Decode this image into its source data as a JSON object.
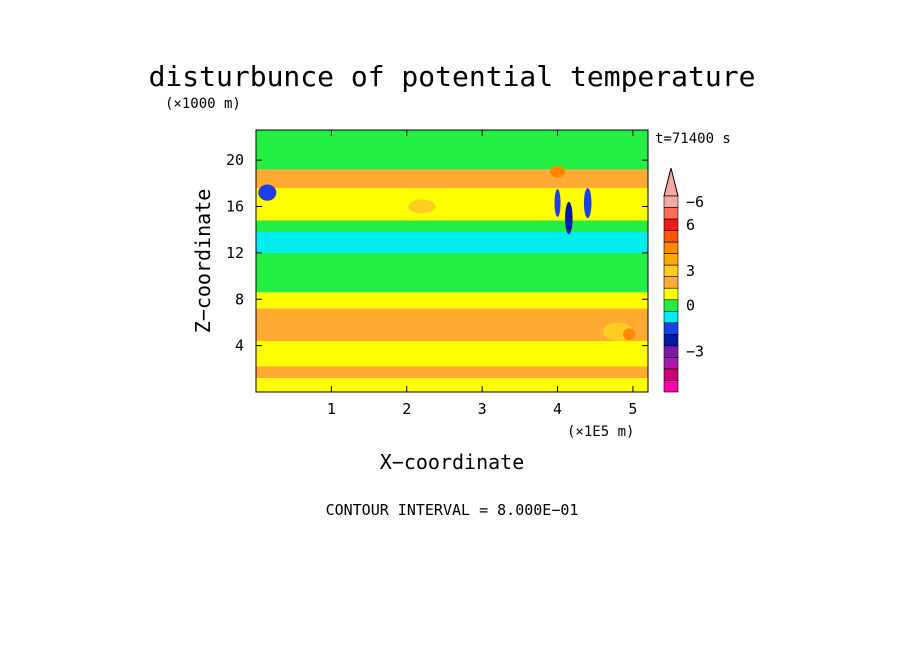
{
  "chart_data": {
    "type": "heatmap",
    "title": "disturbunce of potential temperature",
    "time_label": "t=71400 s",
    "x_axis": {
      "label": "X−coordinate",
      "unit_label": "(×1E5 m)",
      "range": [
        0,
        5.2
      ],
      "ticks": [
        1,
        2,
        3,
        4,
        5
      ],
      "tick_labels": [
        "1",
        "2",
        "3",
        "4",
        "5"
      ]
    },
    "y_axis": {
      "label": "Z−coordinate",
      "unit_label": "(×1000 m)",
      "range": [
        0,
        22.6
      ],
      "ticks": [
        4,
        8,
        12,
        16,
        20
      ],
      "tick_labels": [
        "4",
        "8",
        "12",
        "16",
        "20"
      ]
    },
    "contour_interval_text": "CONTOUR INTERVAL = 8.000E−01",
    "colorbar": {
      "labels": [
        "6",
        "3",
        "0",
        "−3",
        "−6"
      ],
      "label_levels": [
        6,
        3,
        0,
        -3,
        -6
      ],
      "bands": [
        {
          "lo": 8.0,
          "hi": null,
          "color": "#f5a9a0"
        },
        {
          "lo": 7.2,
          "hi": 8.0,
          "color": "#f5a9a0"
        },
        {
          "lo": 6.4,
          "hi": 7.2,
          "color": "#ff6b5a"
        },
        {
          "lo": 5.6,
          "hi": 6.4,
          "color": "#ee1c1c"
        },
        {
          "lo": 4.8,
          "hi": 5.6,
          "color": "#ff5500"
        },
        {
          "lo": 4.0,
          "hi": 4.8,
          "color": "#ff8800"
        },
        {
          "lo": 3.2,
          "hi": 4.0,
          "color": "#ffaa00"
        },
        {
          "lo": 2.4,
          "hi": 3.2,
          "color": "#ffcc22"
        },
        {
          "lo": 1.6,
          "hi": 2.4,
          "color": "#ffaa33"
        },
        {
          "lo": 0.8,
          "hi": 1.6,
          "color": "#ffff00"
        },
        {
          "lo": 0.0,
          "hi": 0.8,
          "color": "#22ee44"
        },
        {
          "lo": -0.8,
          "hi": 0.0,
          "color": "#00eeee"
        },
        {
          "lo": -1.6,
          "hi": -0.8,
          "color": "#1d3fe8"
        },
        {
          "lo": -2.4,
          "hi": -1.6,
          "color": "#001aa8"
        },
        {
          "lo": -3.2,
          "hi": -2.4,
          "color": "#7a1aa8"
        },
        {
          "lo": -4.0,
          "hi": -3.2,
          "color": "#aa1aaa"
        },
        {
          "lo": -4.8,
          "hi": -4.0,
          "color": "#cc0077"
        },
        {
          "lo": null,
          "hi": -4.8,
          "color": "#ff00aa"
        }
      ]
    },
    "field": {
      "layers": [
        {
          "z": [
            0.4,
            1.2
          ],
          "value": 1.0,
          "color": "#ffff00"
        },
        {
          "z": [
            1.2,
            2.2
          ],
          "value": 1.8,
          "color": "#ffaa33"
        },
        {
          "z": [
            2.2,
            4.4
          ],
          "value": 1.0,
          "color": "#ffff00"
        },
        {
          "z": [
            4.4,
            7.2
          ],
          "value": 1.8,
          "color": "#ffaa33"
        },
        {
          "z": [
            7.2,
            8.6
          ],
          "value": 1.0,
          "color": "#ffff00"
        },
        {
          "z": [
            8.6,
            12.0
          ],
          "value": 0.4,
          "color": "#22ee44"
        },
        {
          "z": [
            12.0,
            13.8
          ],
          "value": -0.4,
          "color": "#00eeee"
        },
        {
          "z": [
            13.8,
            14.8
          ],
          "value": 0.4,
          "color": "#22ee44"
        },
        {
          "z": [
            14.8,
            17.6
          ],
          "value": 1.0,
          "color": "#ffff00"
        },
        {
          "z": [
            17.6,
            19.2
          ],
          "value": 1.8,
          "color": "#ffaa33"
        },
        {
          "z": [
            19.2,
            22.6
          ],
          "value": 0.4,
          "color": "#22ee44"
        }
      ],
      "features": [
        {
          "x": 0.15,
          "z": 17.2,
          "rx": 0.12,
          "rz": 0.7,
          "value": -1.2,
          "color": "#1d3fe8"
        },
        {
          "x": 4.0,
          "z": 16.3,
          "rx": 0.04,
          "rz": 1.2,
          "value": -1.2,
          "color": "#1d3fe8"
        },
        {
          "x": 4.15,
          "z": 15.0,
          "rx": 0.05,
          "rz": 1.4,
          "value": -2.0,
          "color": "#001aa8"
        },
        {
          "x": 4.4,
          "z": 16.3,
          "rx": 0.05,
          "rz": 1.3,
          "value": -1.2,
          "color": "#1d3fe8"
        },
        {
          "x": 2.2,
          "z": 16.0,
          "rx": 0.18,
          "rz": 0.6,
          "value": 2.8,
          "color": "#ffcc22"
        },
        {
          "x": 4.0,
          "z": 19.0,
          "rx": 0.1,
          "rz": 0.5,
          "value": 4.4,
          "color": "#ff8800"
        },
        {
          "x": 4.8,
          "z": 5.2,
          "rx": 0.2,
          "rz": 0.8,
          "value": 2.8,
          "color": "#ffcc22"
        },
        {
          "x": 4.95,
          "z": 5.0,
          "rx": 0.08,
          "rz": 0.5,
          "value": 4.4,
          "color": "#ff8800"
        }
      ]
    }
  }
}
